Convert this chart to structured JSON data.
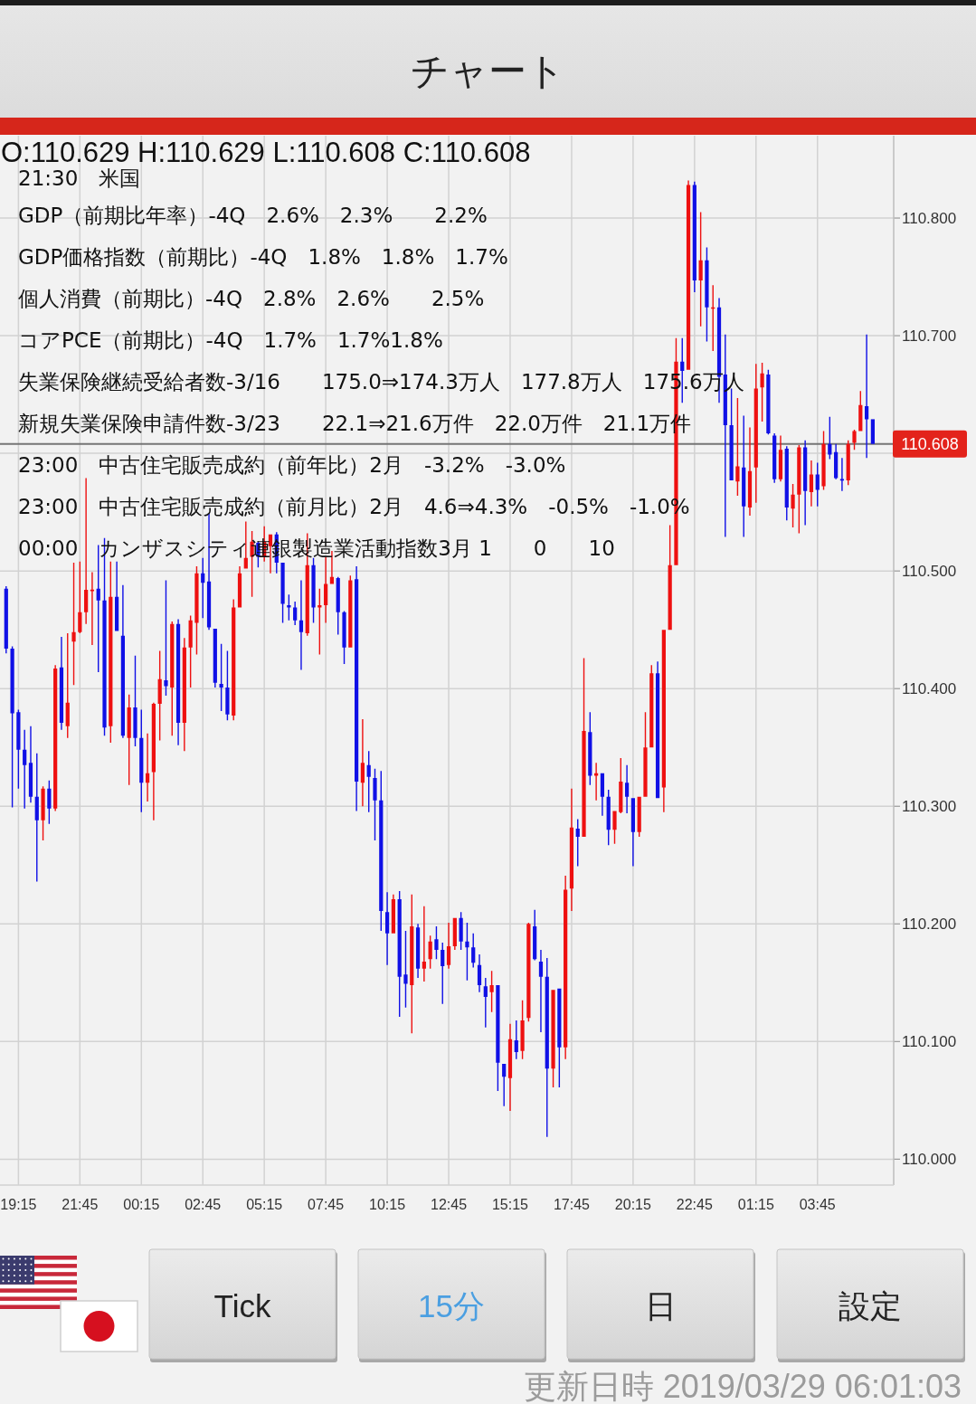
{
  "chart_data": {
    "type": "candlestick",
    "title": "チャート",
    "annotations": [
      "O:110.629 H:110.629 L:110.608 C:110.608",
      "21:30　米国",
      "GDP（前期比年率）-4Q　2.6%　2.3%　　2.2%",
      "GDP価格指数（前期比）-4Q　1.8%　1.8%　1.7%",
      "個人消費（前期比）-4Q　2.8%　2.6%　　2.5%",
      "コアPCE（前期比）-4Q　1.7%　1.7%1.8%",
      "失業保険継続受給者数-3/16　　175.0⇒174.3万人　177.8万人　175.6万人",
      "新規失業保険申請件数-3/23　　22.1⇒21.6万件　22.0万件　21.1万件",
      "23:00　中古住宅販売成約（前年比）2月　-3.2%　-3.0%",
      "23:00　中古住宅販売成約（前月比）2月　4.6⇒4.3%　-0.5%　-1.0%",
      "00:00　カンザスシティ連銀製造業活動指数3月 1　　0　　10",
      "Tick",
      "15分",
      "日",
      "設定",
      "更新日時 2019/03/29 06:01:03"
    ],
    "x": [
      "2019-03-27T18:45",
      "2019-03-27T19:00",
      "2019-03-27T19:15",
      "2019-03-27T19:30",
      "2019-03-27T19:45",
      "2019-03-27T20:00",
      "2019-03-27T20:15",
      "2019-03-27T20:30",
      "2019-03-27T20:45",
      "2019-03-27T21:00",
      "2019-03-27T21:15",
      "2019-03-27T21:30",
      "2019-03-27T21:45",
      "2019-03-27T22:00",
      "2019-03-27T22:15",
      "2019-03-27T22:30",
      "2019-03-27T22:45",
      "2019-03-27T23:00",
      "2019-03-27T23:15",
      "2019-03-27T23:30",
      "2019-03-27T23:45",
      "2019-03-28T00:00",
      "2019-03-28T00:15",
      "2019-03-28T00:30",
      "2019-03-28T00:45",
      "2019-03-28T01:00",
      "2019-03-28T01:15",
      "2019-03-28T01:30",
      "2019-03-28T01:45",
      "2019-03-28T02:00",
      "2019-03-28T02:15",
      "2019-03-28T02:30",
      "2019-03-28T02:45",
      "2019-03-28T03:00",
      "2019-03-28T03:15",
      "2019-03-28T03:30",
      "2019-03-28T03:45",
      "2019-03-28T04:00",
      "2019-03-28T04:15",
      "2019-03-28T04:30",
      "2019-03-28T04:45",
      "2019-03-28T05:00",
      "2019-03-28T05:15",
      "2019-03-28T05:30",
      "2019-03-28T05:45",
      "2019-03-28T06:00",
      "2019-03-28T06:15",
      "2019-03-28T06:30",
      "2019-03-28T06:45",
      "2019-03-28T07:00",
      "2019-03-28T07:15",
      "2019-03-28T07:30",
      "2019-03-28T07:45",
      "2019-03-28T08:00",
      "2019-03-28T08:15",
      "2019-03-28T08:30",
      "2019-03-28T08:45",
      "2019-03-28T09:00",
      "2019-03-28T09:15",
      "2019-03-28T09:30",
      "2019-03-28T09:45",
      "2019-03-28T10:00",
      "2019-03-28T10:15",
      "2019-03-28T10:30",
      "2019-03-28T10:45",
      "2019-03-28T11:00",
      "2019-03-28T11:15",
      "2019-03-28T11:30",
      "2019-03-28T11:45",
      "2019-03-28T12:00",
      "2019-03-28T12:15",
      "2019-03-28T12:30",
      "2019-03-28T12:45",
      "2019-03-28T13:00",
      "2019-03-28T13:15",
      "2019-03-28T13:30",
      "2019-03-28T13:45",
      "2019-03-28T14:00",
      "2019-03-28T14:15",
      "2019-03-28T14:30",
      "2019-03-28T14:45",
      "2019-03-28T15:00",
      "2019-03-28T15:15",
      "2019-03-28T15:30",
      "2019-03-28T15:45",
      "2019-03-28T16:00",
      "2019-03-28T16:15",
      "2019-03-28T16:30",
      "2019-03-28T16:45",
      "2019-03-28T17:00",
      "2019-03-28T17:15",
      "2019-03-28T17:30",
      "2019-03-28T17:45",
      "2019-03-28T18:00",
      "2019-03-28T18:15",
      "2019-03-28T18:30",
      "2019-03-28T18:45",
      "2019-03-28T19:00",
      "2019-03-28T19:15",
      "2019-03-28T19:30",
      "2019-03-28T19:45",
      "2019-03-28T20:00",
      "2019-03-28T20:15",
      "2019-03-28T20:30",
      "2019-03-28T20:45",
      "2019-03-28T21:00",
      "2019-03-28T21:15",
      "2019-03-28T21:30",
      "2019-03-28T21:45",
      "2019-03-28T22:00",
      "2019-03-28T22:15",
      "2019-03-28T22:30",
      "2019-03-28T22:45",
      "2019-03-28T23:00",
      "2019-03-28T23:15",
      "2019-03-28T23:30",
      "2019-03-28T23:45",
      "2019-03-29T00:00",
      "2019-03-29T00:15",
      "2019-03-29T00:30",
      "2019-03-29T00:45",
      "2019-03-29T01:00",
      "2019-03-29T01:15",
      "2019-03-29T01:30",
      "2019-03-29T01:45",
      "2019-03-29T02:00",
      "2019-03-29T02:15",
      "2019-03-29T02:30",
      "2019-03-29T02:45",
      "2019-03-29T03:00",
      "2019-03-29T03:15",
      "2019-03-29T03:30",
      "2019-03-29T03:45",
      "2019-03-29T04:00",
      "2019-03-29T04:15",
      "2019-03-29T04:30",
      "2019-03-29T04:45",
      "2019-03-29T05:00",
      "2019-03-29T05:15",
      "2019-03-29T05:30",
      "2019-03-29T05:45",
      "2019-03-29T06:00"
    ],
    "ohlc": [
      [
        110.485,
        110.487,
        110.43,
        110.434
      ],
      [
        110.434,
        110.436,
        110.299,
        110.379
      ],
      [
        110.38,
        110.382,
        110.315,
        110.348
      ],
      [
        110.348,
        110.365,
        110.298,
        110.335
      ],
      [
        110.337,
        110.368,
        110.303,
        110.308
      ],
      [
        110.308,
        110.345,
        110.236,
        110.288
      ],
      [
        110.288,
        110.317,
        110.271,
        110.315
      ],
      [
        110.315,
        110.322,
        110.285,
        110.298
      ],
      [
        110.298,
        110.42,
        110.296,
        110.417
      ],
      [
        110.418,
        110.444,
        110.365,
        110.371
      ],
      [
        110.368,
        110.447,
        110.358,
        110.388
      ],
      [
        110.44,
        110.507,
        110.403,
        110.448
      ],
      [
        110.448,
        110.508,
        110.447,
        110.465
      ],
      [
        110.465,
        110.579,
        110.455,
        110.484
      ],
      [
        110.483,
        110.499,
        110.437,
        110.484
      ],
      [
        110.485,
        110.522,
        110.414,
        110.475
      ],
      [
        110.475,
        110.528,
        110.36,
        110.367
      ],
      [
        110.368,
        110.508,
        110.354,
        110.478
      ],
      [
        110.478,
        110.508,
        110.449,
        110.449
      ],
      [
        110.445,
        110.488,
        110.358,
        110.36
      ],
      [
        110.358,
        110.395,
        110.318,
        110.384
      ],
      [
        110.384,
        110.428,
        110.351,
        110.358
      ],
      [
        110.358,
        110.382,
        110.295,
        110.32
      ],
      [
        110.32,
        110.362,
        110.304,
        110.328
      ],
      [
        110.329,
        110.388,
        110.288,
        110.387
      ],
      [
        110.387,
        110.432,
        110.356,
        110.408
      ],
      [
        110.407,
        110.492,
        110.394,
        110.402
      ],
      [
        110.401,
        110.457,
        110.36,
        110.455
      ],
      [
        110.455,
        110.459,
        110.352,
        110.371
      ],
      [
        110.371,
        110.443,
        110.347,
        110.435
      ],
      [
        110.435,
        110.462,
        110.401,
        110.458
      ],
      [
        110.456,
        110.504,
        110.429,
        110.498
      ],
      [
        110.498,
        110.511,
        110.46,
        110.49
      ],
      [
        110.491,
        110.549,
        110.45,
        110.452
      ],
      [
        110.451,
        110.451,
        110.401,
        110.405
      ],
      [
        110.404,
        110.438,
        110.381,
        110.401
      ],
      [
        110.401,
        110.432,
        110.373,
        110.378
      ],
      [
        110.377,
        110.476,
        110.373,
        110.469
      ],
      [
        110.469,
        110.504,
        110.469,
        110.498
      ],
      [
        110.502,
        110.542,
        110.502,
        110.511
      ],
      [
        110.512,
        110.534,
        110.478,
        110.525
      ],
      [
        110.524,
        110.525,
        110.503,
        110.512
      ],
      [
        110.512,
        110.538,
        110.508,
        110.525
      ],
      [
        110.521,
        110.531,
        110.498,
        110.531
      ],
      [
        110.531,
        110.533,
        110.498,
        110.507
      ],
      [
        110.507,
        110.507,
        110.456,
        110.472
      ],
      [
        110.471,
        110.48,
        110.458,
        110.469
      ],
      [
        110.469,
        110.474,
        110.454,
        110.458
      ],
      [
        110.458,
        110.492,
        110.416,
        110.448
      ],
      [
        110.447,
        110.532,
        110.445,
        110.505
      ],
      [
        110.505,
        110.511,
        110.456,
        110.469
      ],
      [
        110.469,
        110.485,
        110.429,
        110.471
      ],
      [
        110.471,
        110.512,
        110.456,
        110.489
      ],
      [
        110.489,
        110.517,
        110.489,
        110.495
      ],
      [
        110.494,
        110.495,
        110.446,
        110.465
      ],
      [
        110.465,
        110.466,
        110.421,
        110.435
      ],
      [
        110.435,
        110.496,
        110.435,
        110.492
      ],
      [
        110.493,
        110.504,
        110.296,
        110.321
      ],
      [
        110.32,
        110.374,
        110.3,
        110.337
      ],
      [
        110.335,
        110.347,
        110.295,
        110.325
      ],
      [
        110.324,
        110.332,
        110.271,
        110.305
      ],
      [
        110.305,
        110.33,
        110.194,
        110.211
      ],
      [
        110.21,
        110.227,
        110.165,
        110.192
      ],
      [
        110.192,
        110.225,
        110.192,
        110.221
      ],
      [
        110.221,
        110.228,
        110.121,
        110.155
      ],
      [
        110.157,
        110.194,
        110.129,
        110.149
      ],
      [
        110.148,
        110.225,
        110.107,
        110.198
      ],
      [
        110.197,
        110.2,
        110.154,
        110.162
      ],
      [
        110.162,
        110.215,
        110.151,
        110.168
      ],
      [
        110.17,
        110.19,
        110.162,
        110.185
      ],
      [
        110.187,
        110.198,
        110.17,
        110.178
      ],
      [
        110.178,
        110.184,
        110.132,
        110.164
      ],
      [
        110.165,
        110.201,
        110.162,
        110.181
      ],
      [
        110.181,
        110.205,
        110.178,
        110.205
      ],
      [
        110.205,
        110.21,
        110.178,
        110.185
      ],
      [
        110.185,
        110.201,
        110.152,
        110.18
      ],
      [
        110.18,
        110.192,
        110.163,
        110.167
      ],
      [
        110.165,
        110.174,
        110.142,
        110.148
      ],
      [
        110.147,
        110.154,
        110.112,
        110.138
      ],
      [
        110.142,
        110.16,
        110.125,
        110.148
      ],
      [
        110.148,
        110.148,
        110.058,
        110.082
      ],
      [
        110.081,
        110.081,
        110.045,
        110.07
      ],
      [
        110.069,
        110.115,
        110.041,
        110.102
      ],
      [
        110.101,
        110.118,
        110.085,
        110.091
      ],
      [
        110.092,
        110.135,
        110.085,
        110.118
      ],
      [
        110.12,
        110.201,
        110.117,
        110.2
      ],
      [
        110.198,
        110.212,
        110.169,
        110.17
      ],
      [
        110.168,
        110.178,
        110.108,
        110.155
      ],
      [
        110.155,
        110.171,
        110.019,
        110.077
      ],
      [
        110.077,
        110.144,
        110.061,
        110.144
      ],
      [
        110.145,
        110.145,
        110.061,
        110.095
      ],
      [
        110.095,
        110.241,
        110.085,
        110.229
      ],
      [
        110.23,
        110.315,
        110.211,
        110.282
      ],
      [
        110.281,
        110.289,
        110.249,
        110.274
      ],
      [
        110.274,
        110.426,
        110.274,
        110.364
      ],
      [
        110.363,
        110.38,
        110.318,
        110.326
      ],
      [
        110.326,
        110.337,
        110.305,
        110.328
      ],
      [
        110.328,
        110.328,
        110.292,
        110.308
      ],
      [
        110.308,
        110.314,
        110.267,
        110.28
      ],
      [
        110.28,
        110.296,
        110.268,
        110.296
      ],
      [
        110.295,
        110.341,
        110.294,
        110.321
      ],
      [
        110.32,
        110.335,
        110.294,
        110.308
      ],
      [
        110.307,
        110.307,
        110.249,
        110.278
      ],
      [
        110.278,
        110.308,
        110.274,
        110.308
      ],
      [
        110.308,
        110.38,
        110.308,
        110.35
      ],
      [
        110.35,
        110.42,
        110.35,
        110.413
      ],
      [
        110.413,
        110.423,
        110.307,
        110.307
      ],
      [
        110.316,
        110.45,
        110.295,
        110.45
      ],
      [
        110.45,
        110.539,
        110.45,
        110.505
      ],
      [
        110.505,
        110.698,
        110.505,
        110.678
      ],
      [
        110.678,
        110.698,
        110.643,
        110.67
      ],
      [
        110.671,
        110.832,
        110.671,
        110.828
      ],
      [
        110.828,
        110.831,
        110.737,
        110.747
      ],
      [
        110.747,
        110.805,
        110.708,
        110.764
      ],
      [
        110.764,
        110.775,
        110.695,
        110.724
      ],
      [
        110.723,
        110.743,
        110.687,
        110.724
      ],
      [
        110.724,
        110.732,
        110.643,
        110.665
      ],
      [
        110.667,
        110.701,
        110.529,
        110.624
      ],
      [
        110.624,
        110.655,
        110.577,
        110.577
      ],
      [
        110.576,
        110.647,
        110.564,
        110.589
      ],
      [
        110.588,
        110.632,
        110.529,
        110.555
      ],
      [
        110.554,
        110.622,
        110.547,
        110.585
      ],
      [
        110.588,
        110.676,
        110.558,
        110.655
      ],
      [
        110.656,
        110.677,
        110.627,
        110.668
      ],
      [
        110.667,
        110.671,
        110.616,
        110.617
      ],
      [
        110.615,
        110.617,
        110.575,
        110.578
      ],
      [
        110.578,
        110.615,
        110.576,
        110.603
      ],
      [
        110.604,
        110.606,
        110.543,
        110.554
      ],
      [
        110.553,
        110.574,
        110.537,
        110.565
      ],
      [
        110.565,
        110.607,
        110.532,
        110.605
      ],
      [
        110.605,
        110.611,
        110.539,
        110.568
      ],
      [
        110.567,
        110.594,
        110.555,
        110.582
      ],
      [
        110.582,
        110.592,
        110.555,
        110.569
      ],
      [
        110.572,
        110.619,
        110.569,
        110.608
      ],
      [
        110.608,
        110.631,
        110.595,
        110.599
      ],
      [
        110.601,
        110.608,
        110.578,
        110.579
      ],
      [
        110.578,
        110.596,
        110.568,
        110.577
      ],
      [
        110.577,
        110.611,
        110.573,
        110.608
      ],
      [
        110.609,
        110.62,
        110.603,
        110.619
      ],
      [
        110.619,
        110.653,
        110.619,
        110.641
      ],
      [
        110.64,
        110.701,
        110.596,
        110.629
      ],
      [
        110.629,
        110.629,
        110.608,
        110.608
      ]
    ],
    "xlim": [
      "2019-03-27T18:30",
      "2019-03-29T06:51"
    ],
    "ylim": [
      109.978,
      110.87
    ],
    "xticks": [
      {
        "value": "2019-03-27T19:15",
        "label": "19:15"
      },
      {
        "value": "2019-03-27T21:45",
        "label": "21:45"
      },
      {
        "value": "2019-03-28T00:15",
        "label": "00:15"
      },
      {
        "value": "2019-03-28T02:45",
        "label": "02:45"
      },
      {
        "value": "2019-03-28T05:15",
        "label": "05:15"
      },
      {
        "value": "2019-03-28T07:45",
        "label": "07:45"
      },
      {
        "value": "2019-03-28T10:15",
        "label": "10:15"
      },
      {
        "value": "2019-03-28T12:45",
        "label": "12:45"
      },
      {
        "value": "2019-03-28T15:15",
        "label": "15:15"
      },
      {
        "value": "2019-03-28T17:45",
        "label": "17:45"
      },
      {
        "value": "2019-03-28T20:15",
        "label": "20:15"
      },
      {
        "value": "2019-03-28T22:45",
        "label": "22:45"
      },
      {
        "value": "2019-03-29T01:15",
        "label": "01:15"
      },
      {
        "value": "2019-03-29T03:45",
        "label": "03:45"
      }
    ],
    "yticks": [
      {
        "value": 110,
        "label": "110.000"
      },
      {
        "value": 110.1,
        "label": "110.100"
      },
      {
        "value": 110.2,
        "label": "110.200"
      },
      {
        "value": 110.3,
        "label": "110.300"
      },
      {
        "value": 110.4,
        "label": "110.400"
      },
      {
        "value": 110.5,
        "label": "110.500"
      },
      {
        "value": 110.6,
        "label": null
      },
      {
        "value": 110.7,
        "label": "110.700"
      },
      {
        "value": 110.8,
        "label": "110.800"
      }
    ],
    "ref_lines": [
      {
        "axis": "y",
        "value": 110.608,
        "label": "110.608"
      }
    ],
    "grid": true
  }
}
